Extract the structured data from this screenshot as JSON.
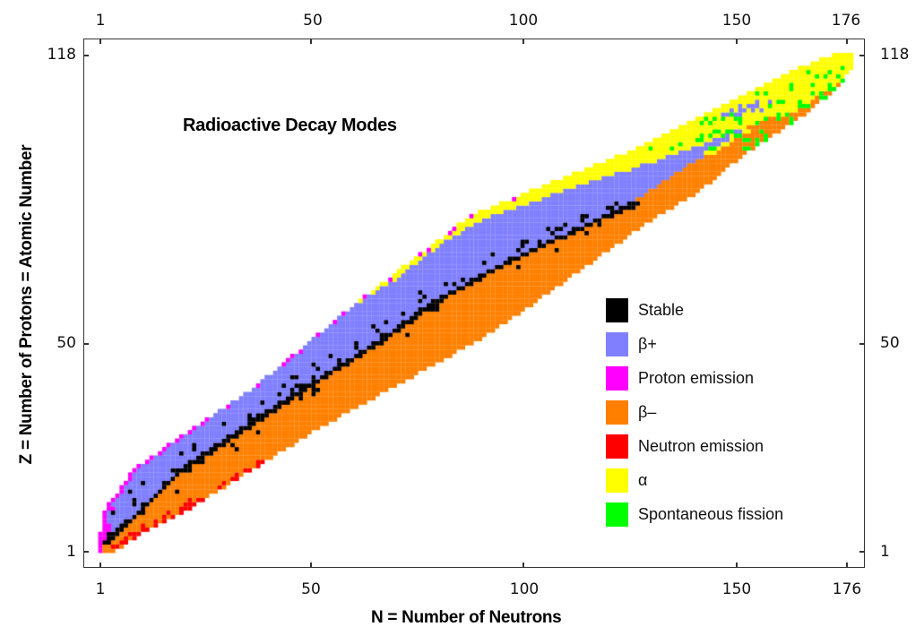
{
  "chart_data": {
    "type": "heatmap",
    "title": "Radioactive Decay Modes",
    "xlabel": "N = Number of Neutrons",
    "ylabel": "Z = Number of Protons = Atomic Number",
    "xlim": [
      1,
      176
    ],
    "ylim": [
      1,
      118
    ],
    "x_ticks": [
      1,
      50,
      100,
      150,
      176
    ],
    "y_ticks": [
      1,
      50,
      118
    ],
    "x_ticks_top": [
      1,
      50,
      100,
      150,
      176
    ],
    "y_ticks_right": [
      1,
      50,
      118
    ],
    "grid": false,
    "legend_position": "lower-right inside plot",
    "legend": [
      {
        "label": "Stable",
        "color": "#000000"
      },
      {
        "label": "β+",
        "color": "#8080FF"
      },
      {
        "label": "Proton emission",
        "color": "#FF00FF"
      },
      {
        "label": "β–",
        "color": "#FF8000"
      },
      {
        "label": "Neutron emission",
        "color": "#FF0000"
      },
      {
        "label": "α",
        "color": "#FFFF00"
      },
      {
        "label": "Spontaneous fission",
        "color": "#00FF00"
      }
    ],
    "band_model": {
      "description": "Approximate per-Z neutron ranges (N) of known nuclides, read off the image; linearly interpolated between sample points",
      "left_edge_N": [
        [
          1,
          1
        ],
        [
          10,
          2
        ],
        [
          20,
          9
        ],
        [
          30,
          23
        ],
        [
          40,
          38
        ],
        [
          50,
          50
        ],
        [
          60,
          62
        ],
        [
          70,
          75
        ],
        [
          80,
          88
        ],
        [
          85,
          100
        ],
        [
          90,
          112
        ],
        [
          95,
          125
        ],
        [
          100,
          135
        ],
        [
          105,
          145
        ],
        [
          110,
          155
        ],
        [
          115,
          165
        ],
        [
          118,
          173
        ]
      ],
      "right_edge_N": [
        [
          1,
          4
        ],
        [
          5,
          10
        ],
        [
          10,
          20
        ],
        [
          20,
          36
        ],
        [
          30,
          52
        ],
        [
          40,
          70
        ],
        [
          50,
          88
        ],
        [
          60,
          103
        ],
        [
          70,
          117
        ],
        [
          80,
          131
        ],
        [
          85,
          140
        ],
        [
          90,
          146
        ],
        [
          95,
          152
        ],
        [
          100,
          160
        ],
        [
          105,
          167
        ],
        [
          110,
          173
        ],
        [
          115,
          177
        ],
        [
          118,
          177
        ]
      ],
      "stable_N": [
        [
          1,
          0
        ],
        [
          10,
          10
        ],
        [
          20,
          20
        ],
        [
          30,
          35
        ],
        [
          40,
          50
        ],
        [
          50,
          66
        ],
        [
          60,
          80
        ],
        [
          70,
          98
        ],
        [
          80,
          120
        ],
        [
          83,
          126
        ]
      ],
      "notes": [
        "Proton emission (magenta) occupies the 1-cell proton-rich edge for Z <= ~85",
        "Neutron emission (red) appears on the neutron-rich edge for Z <= ~22",
        "Alpha (yellow) dominates the proton-rich side for Z >= ~84 and the whole band for Z >= ~104",
        "Spontaneous fission (green) scattered for Z ~ 96-114",
        "β− (orange) fills the neutron-rich side below the stable line",
        "β+ (periwinkle) fills the proton-rich side above the stable line"
      ]
    }
  },
  "axes": {
    "x_title": "N = Number of Neutrons",
    "y_title": "Z = Number of Protons = Atomic Number",
    "x_tick_labels": [
      "1",
      "50",
      "100",
      "150",
      "176"
    ],
    "y_tick_labels": [
      "1",
      "50",
      "118"
    ]
  },
  "title": "Radioactive Decay Modes",
  "legend": {
    "items": [
      {
        "label": "Stable",
        "color": "#000000"
      },
      {
        "label": "β+",
        "color": "#8080FF"
      },
      {
        "label": "Proton emission",
        "color": "#FF00FF"
      },
      {
        "label": "β–",
        "color": "#FF8000"
      },
      {
        "label": "Neutron emission",
        "color": "#FF0000"
      },
      {
        "label": "α",
        "color": "#FFFF00"
      },
      {
        "label": "Spontaneous fission",
        "color": "#00FF00"
      }
    ]
  }
}
